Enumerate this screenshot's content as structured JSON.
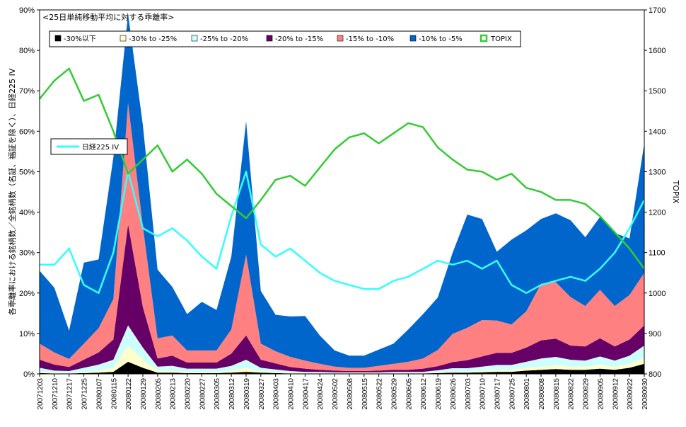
{
  "chart_data": {
    "type": "area",
    "title": "<25日単純移動平均に対する乖離率>",
    "ylabel_left": "各乖離率における銘柄数／全銘柄数（名証、福証を除く）、日経225 IV",
    "ylabel_right": "TOPIX",
    "ylim_left": [
      0,
      90
    ],
    "ylim_right": [
      800,
      1700
    ],
    "yticks_left": [
      "0%",
      "10%",
      "20%",
      "30%",
      "40%",
      "50%",
      "60%",
      "70%",
      "80%",
      "90%"
    ],
    "yticks_right": [
      "800",
      "900",
      "1000",
      "1100",
      "1200",
      "1300",
      "1400",
      "1500",
      "1600",
      "1700"
    ],
    "x_labels": [
      "20071203",
      "20071210",
      "20071217",
      "20071225",
      "20080107",
      "20080115",
      "20080122",
      "20080129",
      "20080205",
      "20080213",
      "20080220",
      "20080227",
      "20080305",
      "20080312",
      "20080319",
      "20080327",
      "20080403",
      "20080410",
      "20080417",
      "20080424",
      "20080502",
      "20080508",
      "20080515",
      "20080522",
      "20080529",
      "20080605",
      "20080612",
      "20080619",
      "20080626",
      "20080703",
      "20080710",
      "20080717",
      "20080725",
      "20080801",
      "20080808",
      "20080815",
      "20080822",
      "20080829",
      "20080905",
      "20080912",
      "20080922",
      "20080930"
    ],
    "legend": {
      "s1": "-30%以下",
      "s2": "-30% to -25%",
      "s3": "-25% to -20%",
      "s4": "-20% to -15%",
      "s5": "-15% to -10%",
      "s6": "-10% to -5%",
      "topix": "TOPIX",
      "iv": "日経225 IV"
    },
    "colors": {
      "s1": "#000000",
      "s2": "#ffffcc",
      "s3": "#ccffff",
      "s4": "#660066",
      "s5": "#ff8080",
      "s6": "#0066cc",
      "topix": "#33cc33",
      "iv": "#33ffff"
    },
    "stacked_series": [
      {
        "name": "-30%以下",
        "values": [
          0.2,
          0.1,
          0.1,
          0.2,
          0.3,
          0.5,
          3,
          1.5,
          0.3,
          0.3,
          0.2,
          0.2,
          0.2,
          0.3,
          0.5,
          0.3,
          0.2,
          0.1,
          0.1,
          0.1,
          0.1,
          0.1,
          0.1,
          0.1,
          0.1,
          0.1,
          0.1,
          0.2,
          0.3,
          0.3,
          0.4,
          0.5,
          0.5,
          0.8,
          1,
          1.2,
          1,
          1,
          1.3,
          1,
          1.5,
          2.5
        ]
      },
      {
        "name": "-30% to -25%",
        "values": [
          0.3,
          0.2,
          0.1,
          0.3,
          0.5,
          1,
          4,
          2,
          0.5,
          0.5,
          0.3,
          0.3,
          0.3,
          0.5,
          1,
          0.4,
          0.3,
          0.2,
          0.1,
          0.1,
          0.1,
          0.1,
          0.1,
          0.1,
          0.1,
          0.1,
          0.1,
          0.2,
          0.3,
          0.3,
          0.4,
          0.5,
          0.5,
          0.7,
          0.8,
          1,
          0.8,
          0.8,
          1,
          0.8,
          1,
          1.5
        ]
      },
      {
        "name": "-25% to -20%",
        "values": [
          1,
          0.5,
          0.5,
          1,
          1.5,
          2,
          5,
          3,
          1,
          1.2,
          0.8,
          0.8,
          0.8,
          1.2,
          2,
          0.8,
          0.6,
          0.4,
          0.3,
          0.3,
          0.2,
          0.2,
          0.2,
          0.2,
          0.3,
          0.3,
          0.3,
          0.5,
          0.8,
          0.8,
          1,
          1.2,
          1.2,
          1.5,
          2,
          2,
          1.7,
          1.5,
          2,
          1.5,
          2,
          3
        ]
      },
      {
        "name": "-20% to -15%",
        "values": [
          2,
          1.5,
          1,
          2,
          3,
          5,
          25,
          10,
          2,
          2.5,
          1.5,
          1.5,
          1.5,
          3,
          6,
          2,
          1.5,
          1,
          0.8,
          0.5,
          0.4,
          0.3,
          0.3,
          0.4,
          0.5,
          0.5,
          0.8,
          1,
          1.5,
          2,
          2.5,
          3,
          3,
          3.5,
          4.5,
          4.5,
          3.5,
          3.5,
          4.5,
          3.5,
          4,
          5
        ]
      },
      {
        "name": "-15% to -10%",
        "values": [
          4,
          3,
          2,
          4,
          6,
          10,
          30,
          20,
          5,
          5,
          3,
          3,
          3,
          6,
          20,
          4,
          3,
          2.5,
          2,
          1.5,
          1,
          0.8,
          0.8,
          1.2,
          1.5,
          2,
          2.5,
          4,
          7,
          8,
          9,
          8,
          7,
          9,
          14,
          14,
          12,
          10,
          12,
          10,
          11,
          13
        ]
      },
      {
        "name": "-10% to -5%",
        "values": [
          18,
          16,
          7,
          20,
          17,
          35,
          22,
          25,
          17,
          12,
          9,
          12,
          10,
          18,
          33,
          13,
          9,
          10,
          11,
          7,
          4,
          3,
          3,
          4,
          5,
          8,
          11,
          13,
          20,
          28,
          25,
          17,
          21,
          20,
          16,
          17,
          19,
          17,
          18,
          18,
          14,
          32
        ]
      }
    ],
    "topix": [
      1480,
      1525,
      1555,
      1475,
      1490,
      1400,
      1295,
      1330,
      1365,
      1300,
      1330,
      1295,
      1245,
      1215,
      1185,
      1230,
      1280,
      1290,
      1265,
      1310,
      1355,
      1385,
      1395,
      1370,
      1395,
      1420,
      1410,
      1360,
      1330,
      1305,
      1300,
      1280,
      1295,
      1260,
      1250,
      1230,
      1230,
      1220,
      1190,
      1150,
      1110,
      1060
    ],
    "iv": [
      27,
      27,
      31,
      22,
      20,
      30,
      50,
      36,
      34,
      36,
      33,
      29,
      26,
      39,
      50,
      32,
      29,
      31,
      28,
      25,
      23,
      22,
      21,
      21,
      23,
      24,
      26,
      28,
      27,
      28,
      26,
      28,
      22,
      20,
      22,
      23,
      24,
      23,
      26,
      30,
      36,
      43
    ]
  }
}
